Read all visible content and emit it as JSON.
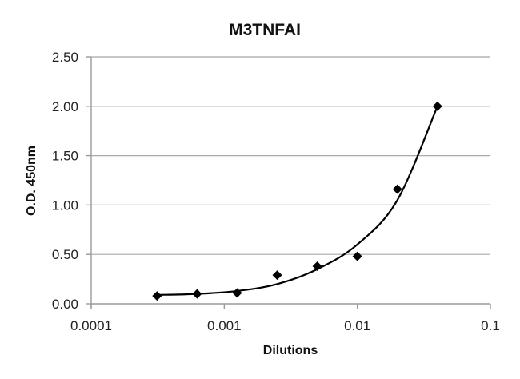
{
  "chart_data": {
    "type": "scatter",
    "title": "M3TNFAI",
    "xlabel": "Dilutions",
    "ylabel": "O.D. 450nm",
    "x_scale": "log",
    "xlim": [
      0.0001,
      0.1
    ],
    "ylim": [
      0,
      2.5
    ],
    "x_ticks": [
      "0.0001",
      "0.001",
      "0.01",
      "0.1"
    ],
    "y_ticks": [
      "0.00",
      "0.50",
      "1.00",
      "1.50",
      "2.00",
      "2.50"
    ],
    "grid": {
      "horizontal": true,
      "vertical": false
    },
    "legend": null,
    "series": [
      {
        "name": "M3TNFAI",
        "marker": "diamond",
        "color": "#000000",
        "x": [
          0.0003125,
          0.000625,
          0.00125,
          0.0025,
          0.005,
          0.01,
          0.02,
          0.04
        ],
        "y": [
          0.08,
          0.1,
          0.11,
          0.29,
          0.38,
          0.48,
          1.16,
          2.0
        ]
      }
    ],
    "trendline": {
      "type": "fitted curve",
      "color": "#000000",
      "points": [
        [
          0.0003125,
          0.09
        ],
        [
          0.000625,
          0.1
        ],
        [
          0.00125,
          0.13
        ],
        [
          0.0025,
          0.2
        ],
        [
          0.005,
          0.35
        ],
        [
          0.01,
          0.6
        ],
        [
          0.02,
          1.05
        ],
        [
          0.04,
          2.0
        ]
      ]
    }
  }
}
